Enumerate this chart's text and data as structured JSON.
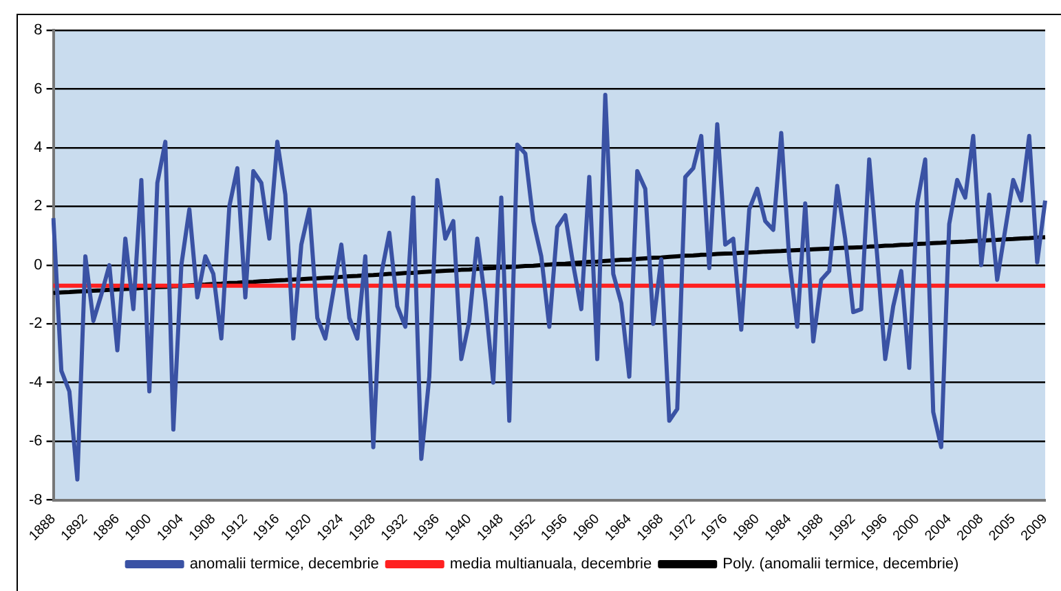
{
  "chart_data": {
    "type": "line",
    "categories": [
      "1888",
      null,
      null,
      null,
      "1892",
      null,
      null,
      null,
      "1896",
      null,
      null,
      null,
      "1900",
      null,
      null,
      null,
      "1904",
      null,
      null,
      null,
      "1908",
      null,
      null,
      null,
      "1912",
      null,
      null,
      null,
      "1916",
      null,
      null,
      null,
      "1920",
      null,
      null,
      null,
      "1924",
      null,
      null,
      null,
      "1928",
      null,
      null,
      null,
      "1932",
      null,
      null,
      null,
      "1936",
      null,
      null,
      null,
      "1940",
      null,
      null,
      null,
      "1948",
      null,
      null,
      null,
      "1952",
      null,
      null,
      null,
      "1956",
      null,
      null,
      null,
      "1960",
      null,
      null,
      null,
      "1964",
      null,
      null,
      null,
      "1968",
      null,
      null,
      null,
      "1972",
      null,
      null,
      null,
      "1976",
      null,
      null,
      null,
      "1980",
      null,
      null,
      null,
      "1984",
      null,
      null,
      null,
      "1988",
      null,
      null,
      null,
      "1992",
      null,
      null,
      null,
      "1996",
      null,
      null,
      null,
      "2000",
      null,
      null,
      null,
      "2004",
      null,
      null,
      null,
      "2008",
      null,
      null,
      null,
      "2005",
      null,
      null,
      null,
      "2009"
    ],
    "series": [
      {
        "name": "anomalii termice, decembrie",
        "color": "#3a52a4",
        "values": [
          1.6,
          -3.6,
          -4.3,
          -7.3,
          0.3,
          -1.9,
          -1.0,
          0.0,
          -2.9,
          0.9,
          -1.5,
          2.9,
          -4.3,
          2.8,
          4.2,
          -5.6,
          0.0,
          1.9,
          -1.1,
          0.3,
          -0.3,
          -2.5,
          2.0,
          3.3,
          -1.1,
          3.2,
          2.8,
          0.9,
          4.2,
          2.4,
          -2.5,
          0.7,
          1.9,
          -1.8,
          -2.5,
          -0.9,
          0.7,
          -1.8,
          -2.5,
          0.3,
          -6.2,
          -0.3,
          1.1,
          -1.4,
          -2.1,
          2.3,
          -6.6,
          -3.8,
          2.9,
          0.9,
          1.5,
          -3.2,
          -1.9,
          0.9,
          -1.2,
          -4.0,
          2.3,
          -5.3,
          4.1,
          3.8,
          1.5,
          0.3,
          -2.1,
          1.3,
          1.7,
          0.0,
          -1.5,
          3.0,
          -3.2,
          5.8,
          -0.3,
          -1.3,
          -3.8,
          3.2,
          2.6,
          -2.0,
          0.2,
          -5.3,
          -4.9,
          3.0,
          3.3,
          4.4,
          -0.1,
          4.8,
          0.7,
          0.9,
          -2.2,
          1.9,
          2.6,
          1.5,
          1.2,
          4.5,
          0.2,
          -2.1,
          2.1,
          -2.6,
          -0.5,
          -0.2,
          2.7,
          0.9,
          -1.6,
          -1.5,
          3.6,
          0.3,
          -3.2,
          -1.4,
          -0.2,
          -3.5,
          2.1,
          3.6,
          -5.0,
          -6.2,
          1.4,
          2.9,
          2.3,
          4.4,
          0.0,
          2.4,
          -0.5,
          1.2,
          2.9,
          2.2,
          4.4,
          0.1,
          2.2
        ]
      },
      {
        "name": "media multianuala, decembrie",
        "color": "#ff2020",
        "values": [
          -0.7,
          -0.7,
          -0.7,
          -0.7,
          -0.7,
          -0.7,
          -0.7,
          -0.7,
          -0.7,
          -0.7,
          -0.7,
          -0.7,
          -0.7,
          -0.7,
          -0.7,
          -0.7,
          -0.7,
          -0.7,
          -0.7,
          -0.7,
          -0.7,
          -0.7,
          -0.7,
          -0.7,
          -0.7,
          -0.7,
          -0.7,
          -0.7,
          -0.7,
          -0.7,
          -0.7,
          -0.7,
          -0.7,
          -0.7,
          -0.7,
          -0.7,
          -0.7,
          -0.7,
          -0.7,
          -0.7,
          -0.7,
          -0.7,
          -0.7,
          -0.7,
          -0.7,
          -0.7,
          -0.7,
          -0.7,
          -0.7,
          -0.7,
          -0.7,
          -0.7,
          -0.7,
          -0.7,
          -0.7,
          -0.7,
          -0.7,
          -0.7,
          -0.7,
          -0.7,
          -0.7,
          -0.7,
          -0.7,
          -0.7,
          -0.7,
          -0.7,
          -0.7,
          -0.7,
          -0.7,
          -0.7,
          -0.7,
          -0.7,
          -0.7,
          -0.7,
          -0.7,
          -0.7,
          -0.7,
          -0.7,
          -0.7,
          -0.7,
          -0.7,
          -0.7,
          -0.7,
          -0.7,
          -0.7,
          -0.7,
          -0.7,
          -0.7,
          -0.7,
          -0.7,
          -0.7,
          -0.7,
          -0.7,
          -0.7,
          -0.7,
          -0.7,
          -0.7,
          -0.7,
          -0.7,
          -0.7,
          -0.7,
          -0.7,
          -0.7,
          -0.7,
          -0.7,
          -0.7,
          -0.7,
          -0.7,
          -0.7,
          -0.7,
          -0.7,
          -0.7,
          -0.7,
          -0.7,
          -0.7,
          -0.7,
          -0.7,
          -0.7,
          -0.7,
          -0.7,
          -0.7,
          -0.7,
          -0.7,
          -0.7,
          -0.7
        ]
      },
      {
        "name": "Poly. (anomalii termice, decembrie)",
        "color": "#000000",
        "values": [
          -0.95,
          -0.93,
          -0.92,
          -0.9,
          -0.89,
          -0.87,
          -0.86,
          -0.84,
          -0.83,
          -0.81,
          -0.8,
          -0.78,
          -0.77,
          -0.75,
          -0.74,
          -0.72,
          -0.71,
          -0.69,
          -0.67,
          -0.66,
          -0.64,
          -0.63,
          -0.61,
          -0.6,
          -0.58,
          -0.57,
          -0.55,
          -0.54,
          -0.52,
          -0.51,
          -0.49,
          -0.48,
          -0.46,
          -0.45,
          -0.43,
          -0.42,
          -0.4,
          -0.38,
          -0.37,
          -0.35,
          -0.34,
          -0.32,
          -0.3,
          -0.29,
          -0.27,
          -0.26,
          -0.24,
          -0.22,
          -0.21,
          -0.19,
          -0.18,
          -0.16,
          -0.15,
          -0.13,
          -0.11,
          -0.1,
          -0.08,
          -0.07,
          -0.05,
          -0.03,
          -0.02,
          0.0,
          0.02,
          0.04,
          0.05,
          0.07,
          0.09,
          0.11,
          0.12,
          0.14,
          0.16,
          0.18,
          0.19,
          0.21,
          0.23,
          0.25,
          0.26,
          0.28,
          0.3,
          0.32,
          0.33,
          0.35,
          0.36,
          0.38,
          0.39,
          0.4,
          0.42,
          0.43,
          0.44,
          0.46,
          0.47,
          0.48,
          0.5,
          0.51,
          0.52,
          0.54,
          0.55,
          0.56,
          0.58,
          0.59,
          0.6,
          0.61,
          0.63,
          0.64,
          0.66,
          0.67,
          0.69,
          0.7,
          0.72,
          0.73,
          0.75,
          0.76,
          0.78,
          0.79,
          0.8,
          0.82,
          0.83,
          0.85,
          0.86,
          0.88,
          0.89,
          0.91,
          0.92,
          0.94,
          0.95
        ]
      }
    ],
    "ylim": [
      -8,
      8
    ],
    "yticks": [
      -8,
      -6,
      -4,
      -2,
      0,
      2,
      4,
      6,
      8
    ],
    "grid": "y",
    "legend": "bottom",
    "marker": "none",
    "line_style": "solid"
  }
}
